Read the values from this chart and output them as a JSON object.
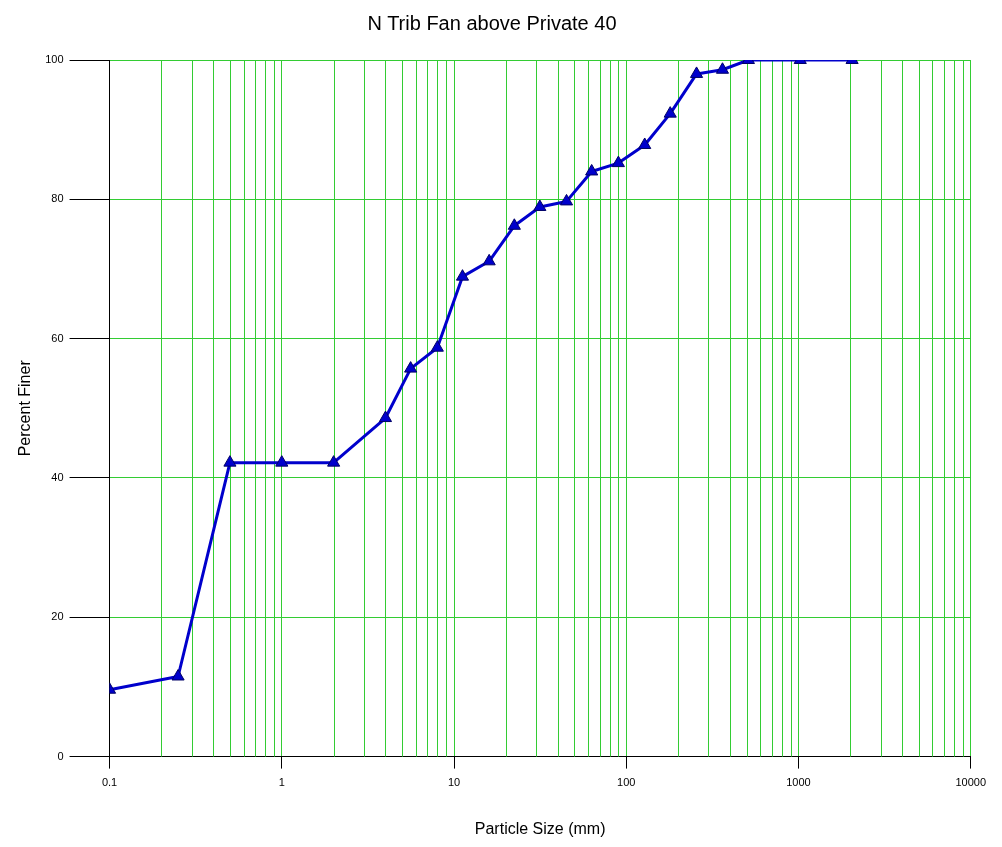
{
  "chart_data": {
    "type": "line",
    "title": "N Trib Fan above Private 40",
    "xlabel": "Particle Size (mm)",
    "ylabel": "Percent Finer",
    "x": [
      0.1,
      0.25,
      0.5,
      1,
      2,
      4,
      5.6,
      8,
      11.2,
      16,
      22.4,
      31.5,
      45,
      63,
      90,
      128,
      180,
      256,
      362,
      512,
      1024,
      2048
    ],
    "series": [
      {
        "color": "#0000cc",
        "values": [
          9.6,
          11.5,
          42.2,
          42.2,
          42.2,
          48.6,
          55.7,
          58.7,
          68.9,
          71.1,
          76.2,
          78.9,
          79.7,
          84.0,
          85.2,
          87.8,
          92.3,
          98.0,
          98.6,
          100,
          100,
          100
        ]
      }
    ],
    "xlim": [
      0.1,
      10000
    ],
    "xticks": [
      0.1,
      1,
      10,
      100,
      1000,
      10000
    ],
    "ylim": [
      0,
      100
    ],
    "yticks": [
      0,
      20,
      40,
      60,
      80,
      100
    ],
    "log": "x",
    "grid": true,
    "legend": false,
    "marker": "triangle",
    "line_style": "solid"
  }
}
